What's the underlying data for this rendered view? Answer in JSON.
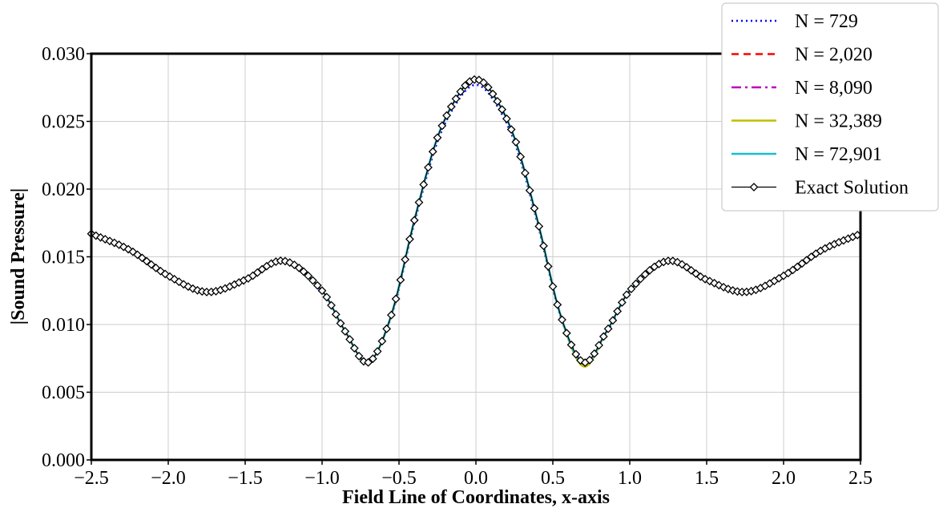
{
  "chart_data": {
    "type": "line",
    "title": "",
    "xlabel": "Field Line of Coordinates, x-axis",
    "ylabel": "|Sound Pressure|",
    "xlim": [
      -2.5,
      2.5
    ],
    "ylim": [
      0.0,
      0.03
    ],
    "xticks": [
      -2.5,
      -2.0,
      -1.5,
      -1.0,
      -0.5,
      0.0,
      0.5,
      1.0,
      1.5,
      2.0,
      2.5
    ],
    "yticks": [
      0.0,
      0.005,
      0.01,
      0.015,
      0.02,
      0.025,
      0.03
    ],
    "xtick_labels": [
      "−2.5",
      "−2.0",
      "−1.5",
      "−1.0",
      "−0.5",
      "0.0",
      "0.5",
      "1.0",
      "1.5",
      "2.0",
      "2.5"
    ],
    "ytick_labels": [
      "0.000",
      "0.005",
      "0.010",
      "0.015",
      "0.020",
      "0.025",
      "0.030"
    ],
    "grid": true,
    "legend_position": "top-right",
    "x": [
      -2.5,
      -2.25,
      -2.0,
      -1.75,
      -1.5,
      -1.25,
      -1.0,
      -0.85,
      -0.7,
      -0.55,
      -0.4,
      -0.25,
      -0.1,
      0.0,
      0.1,
      0.25,
      0.4,
      0.55,
      0.7,
      0.85,
      1.0,
      1.25,
      1.5,
      1.75,
      2.0,
      2.25,
      2.5
    ],
    "series": [
      {
        "name": "N = 729",
        "color": "#0000ff",
        "style": "dotted",
        "values": [
          0.0167,
          0.0155,
          0.0136,
          0.0124,
          0.0133,
          0.0147,
          0.0124,
          0.0094,
          0.0073,
          0.0106,
          0.0175,
          0.0235,
          0.0268,
          0.0277,
          0.0268,
          0.0235,
          0.0175,
          0.0106,
          0.0073,
          0.0094,
          0.0124,
          0.0147,
          0.0133,
          0.0124,
          0.0136,
          0.0155,
          0.0167
        ]
      },
      {
        "name": "N = 2,020",
        "color": "#ff0000",
        "style": "dashed",
        "values": [
          0.0167,
          0.0155,
          0.0136,
          0.0124,
          0.0133,
          0.0147,
          0.0125,
          0.0095,
          0.0072,
          0.0107,
          0.0177,
          0.0238,
          0.0272,
          0.0281,
          0.0272,
          0.0238,
          0.0177,
          0.0107,
          0.0071,
          0.0095,
          0.0125,
          0.0147,
          0.0133,
          0.0124,
          0.0136,
          0.0155,
          0.0167
        ]
      },
      {
        "name": "N = 8,090",
        "color": "#bf00bf",
        "style": "dashdot",
        "values": [
          0.0167,
          0.0155,
          0.0136,
          0.0124,
          0.0133,
          0.0147,
          0.0125,
          0.0095,
          0.0072,
          0.0107,
          0.0177,
          0.0238,
          0.0272,
          0.0281,
          0.0272,
          0.0238,
          0.0177,
          0.0107,
          0.007,
          0.0095,
          0.0125,
          0.0147,
          0.0133,
          0.0124,
          0.0136,
          0.0155,
          0.0167
        ]
      },
      {
        "name": "N = 32,389",
        "color": "#bfbf00",
        "style": "solid",
        "values": [
          0.0167,
          0.0155,
          0.0136,
          0.0124,
          0.0133,
          0.0147,
          0.0125,
          0.0095,
          0.0072,
          0.0107,
          0.0177,
          0.0238,
          0.0272,
          0.0281,
          0.0272,
          0.0238,
          0.0177,
          0.0107,
          0.0069,
          0.0095,
          0.0125,
          0.0147,
          0.0133,
          0.0124,
          0.0136,
          0.0155,
          0.0167
        ]
      },
      {
        "name": "N = 72,901",
        "color": "#17becf",
        "style": "solid",
        "values": [
          0.0167,
          0.0155,
          0.0136,
          0.0124,
          0.0133,
          0.0147,
          0.0125,
          0.0095,
          0.0072,
          0.0107,
          0.0177,
          0.0238,
          0.0272,
          0.0281,
          0.0272,
          0.0238,
          0.0177,
          0.0107,
          0.0071,
          0.0095,
          0.0125,
          0.0147,
          0.0133,
          0.0124,
          0.0136,
          0.0155,
          0.0167
        ]
      },
      {
        "name": "Exact Solution",
        "color": "#000000",
        "style": "solid-diamond",
        "values": [
          0.0167,
          0.0155,
          0.0136,
          0.0124,
          0.0133,
          0.0147,
          0.0125,
          0.0095,
          0.0072,
          0.0107,
          0.0177,
          0.0238,
          0.0272,
          0.0281,
          0.0272,
          0.0238,
          0.0177,
          0.0107,
          0.0072,
          0.0095,
          0.0125,
          0.0147,
          0.0133,
          0.0124,
          0.0136,
          0.0155,
          0.0167
        ]
      }
    ]
  }
}
